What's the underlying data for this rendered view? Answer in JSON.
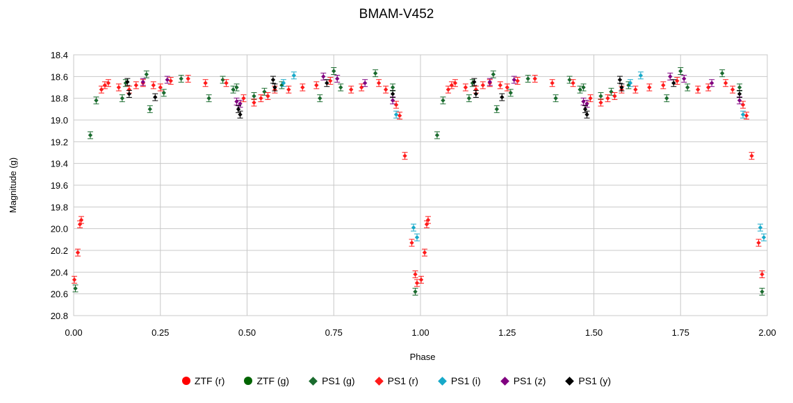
{
  "chart_data": {
    "type": "scatter",
    "title": "BMAM-V452",
    "xlabel": "Phase",
    "ylabel": "Magnitude (g)",
    "xlim": [
      0,
      2
    ],
    "ylim": [
      18.4,
      20.8
    ],
    "y_inverted": true,
    "xticks": [
      "0.00",
      "0.25",
      "0.50",
      "0.75",
      "1.00",
      "1.25",
      "1.50",
      "1.75",
      "2.00"
    ],
    "yticks": [
      "18.4",
      "18.6",
      "18.8",
      "19.0",
      "19.2",
      "19.4",
      "19.6",
      "19.8",
      "20.0",
      "20.2",
      "20.4",
      "20.6",
      "20.8"
    ],
    "grid": true,
    "legend_position": "bottom",
    "series": [
      {
        "name": "ZTF (r)",
        "marker": "circle",
        "color": "#ff0000",
        "points": []
      },
      {
        "name": "ZTF (g)",
        "marker": "circle",
        "color": "#006400",
        "points": []
      },
      {
        "name": "PS1 (g)",
        "marker": "diamond",
        "color": "#1a6b2e",
        "points": [
          [
            0.065,
            18.82
          ],
          [
            0.048,
            19.14
          ],
          [
            0.005,
            20.55
          ],
          [
            0.14,
            18.8
          ],
          [
            0.15,
            18.66
          ],
          [
            0.21,
            18.58
          ],
          [
            0.22,
            18.9
          ],
          [
            0.26,
            18.75
          ],
          [
            0.31,
            18.62
          ],
          [
            0.39,
            18.8
          ],
          [
            0.43,
            18.63
          ],
          [
            0.46,
            18.72
          ],
          [
            0.47,
            18.7
          ],
          [
            0.52,
            18.78
          ],
          [
            0.55,
            18.74
          ],
          [
            0.6,
            18.68
          ],
          [
            0.71,
            18.8
          ],
          [
            0.75,
            18.55
          ],
          [
            0.77,
            18.7
          ],
          [
            0.87,
            18.57
          ],
          [
            0.92,
            18.7
          ],
          [
            0.985,
            20.58
          ],
          [
            1.065,
            18.82
          ],
          [
            1.048,
            19.14
          ],
          [
            1.14,
            18.8
          ],
          [
            1.15,
            18.66
          ],
          [
            1.21,
            18.58
          ],
          [
            1.22,
            18.9
          ],
          [
            1.26,
            18.75
          ],
          [
            1.31,
            18.62
          ],
          [
            1.39,
            18.8
          ],
          [
            1.43,
            18.63
          ],
          [
            1.46,
            18.72
          ],
          [
            1.47,
            18.7
          ],
          [
            1.52,
            18.78
          ],
          [
            1.55,
            18.74
          ],
          [
            1.6,
            18.68
          ],
          [
            1.71,
            18.8
          ],
          [
            1.75,
            18.55
          ],
          [
            1.77,
            18.7
          ],
          [
            1.87,
            18.57
          ],
          [
            1.92,
            18.7
          ],
          [
            1.985,
            20.58
          ]
        ]
      },
      {
        "name": "PS1 (r)",
        "marker": "diamond",
        "color": "#ff1a1a",
        "points": [
          [
            0.002,
            20.47
          ],
          [
            0.012,
            20.22
          ],
          [
            0.018,
            19.96
          ],
          [
            0.022,
            19.92
          ],
          [
            0.08,
            18.72
          ],
          [
            0.09,
            18.68
          ],
          [
            0.1,
            18.66
          ],
          [
            0.13,
            18.7
          ],
          [
            0.16,
            18.72
          ],
          [
            0.18,
            18.68
          ],
          [
            0.2,
            18.66
          ],
          [
            0.23,
            18.68
          ],
          [
            0.25,
            18.7
          ],
          [
            0.28,
            18.64
          ],
          [
            0.33,
            18.62
          ],
          [
            0.38,
            18.66
          ],
          [
            0.44,
            18.66
          ],
          [
            0.49,
            18.8
          ],
          [
            0.52,
            18.84
          ],
          [
            0.54,
            18.8
          ],
          [
            0.56,
            18.78
          ],
          [
            0.58,
            18.72
          ],
          [
            0.62,
            18.72
          ],
          [
            0.66,
            18.7
          ],
          [
            0.7,
            18.68
          ],
          [
            0.74,
            18.64
          ],
          [
            0.8,
            18.72
          ],
          [
            0.83,
            18.7
          ],
          [
            0.88,
            18.66
          ],
          [
            0.9,
            18.72
          ],
          [
            0.93,
            18.86
          ],
          [
            0.94,
            18.96
          ],
          [
            0.955,
            19.33
          ],
          [
            0.975,
            20.13
          ],
          [
            0.985,
            20.42
          ],
          [
            0.99,
            20.5
          ],
          [
            1.002,
            20.47
          ],
          [
            1.012,
            20.22
          ],
          [
            1.018,
            19.96
          ],
          [
            1.022,
            19.92
          ],
          [
            1.08,
            18.72
          ],
          [
            1.09,
            18.68
          ],
          [
            1.1,
            18.66
          ],
          [
            1.13,
            18.7
          ],
          [
            1.16,
            18.72
          ],
          [
            1.18,
            18.68
          ],
          [
            1.2,
            18.66
          ],
          [
            1.23,
            18.68
          ],
          [
            1.25,
            18.7
          ],
          [
            1.28,
            18.64
          ],
          [
            1.33,
            18.62
          ],
          [
            1.38,
            18.66
          ],
          [
            1.44,
            18.66
          ],
          [
            1.49,
            18.8
          ],
          [
            1.52,
            18.84
          ],
          [
            1.54,
            18.8
          ],
          [
            1.56,
            18.78
          ],
          [
            1.58,
            18.72
          ],
          [
            1.62,
            18.72
          ],
          [
            1.66,
            18.7
          ],
          [
            1.7,
            18.68
          ],
          [
            1.74,
            18.64
          ],
          [
            1.8,
            18.72
          ],
          [
            1.83,
            18.7
          ],
          [
            1.88,
            18.66
          ],
          [
            1.9,
            18.72
          ],
          [
            1.93,
            18.86
          ],
          [
            1.94,
            18.96
          ],
          [
            1.955,
            19.33
          ],
          [
            1.975,
            20.13
          ],
          [
            1.985,
            20.42
          ]
        ]
      },
      {
        "name": "PS1 (i)",
        "marker": "diamond",
        "color": "#17a9c9",
        "points": [
          [
            0.605,
            18.66
          ],
          [
            0.635,
            18.59
          ],
          [
            0.93,
            18.95
          ],
          [
            0.98,
            19.99
          ],
          [
            0.99,
            20.08
          ],
          [
            1.605,
            18.66
          ],
          [
            1.635,
            18.59
          ],
          [
            1.93,
            18.95
          ],
          [
            1.98,
            19.99
          ],
          [
            1.99,
            20.08
          ]
        ]
      },
      {
        "name": "PS1 (z)",
        "marker": "diamond",
        "color": "#800080",
        "points": [
          [
            0.2,
            18.65
          ],
          [
            0.27,
            18.63
          ],
          [
            0.47,
            18.83
          ],
          [
            0.48,
            18.85
          ],
          [
            0.72,
            18.6
          ],
          [
            0.76,
            18.62
          ],
          [
            0.84,
            18.66
          ],
          [
            0.92,
            18.82
          ],
          [
            1.2,
            18.65
          ],
          [
            1.27,
            18.63
          ],
          [
            1.47,
            18.83
          ],
          [
            1.48,
            18.85
          ],
          [
            1.72,
            18.6
          ],
          [
            1.76,
            18.62
          ],
          [
            1.84,
            18.66
          ],
          [
            1.92,
            18.82
          ]
        ]
      },
      {
        "name": "PS1 (y)",
        "marker": "diamond",
        "color": "#000000",
        "points": [
          [
            0.155,
            18.65
          ],
          [
            0.16,
            18.76
          ],
          [
            0.235,
            18.79
          ],
          [
            0.475,
            18.9
          ],
          [
            0.48,
            18.95
          ],
          [
            0.575,
            18.63
          ],
          [
            0.58,
            18.7
          ],
          [
            0.73,
            18.66
          ],
          [
            0.92,
            18.76
          ],
          [
            1.155,
            18.65
          ],
          [
            1.16,
            18.76
          ],
          [
            1.235,
            18.79
          ],
          [
            1.475,
            18.9
          ],
          [
            1.48,
            18.95
          ],
          [
            1.575,
            18.63
          ],
          [
            1.58,
            18.7
          ],
          [
            1.73,
            18.66
          ],
          [
            1.92,
            18.76
          ]
        ]
      }
    ]
  }
}
